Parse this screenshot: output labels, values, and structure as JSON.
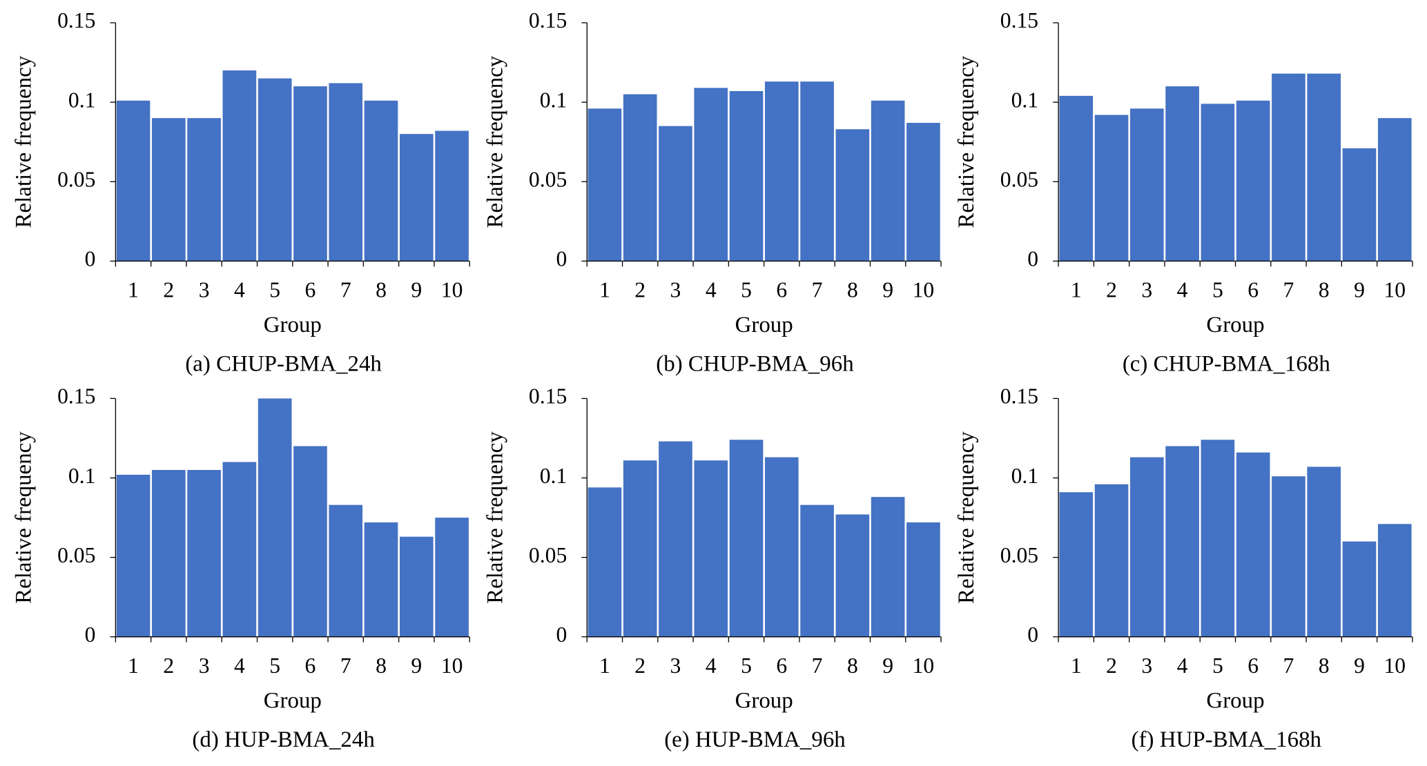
{
  "chart_data": [
    {
      "type": "bar",
      "title": "(a) CHUP-BMA_24h",
      "x_label": "Group",
      "y_label": "Relative frequency",
      "categories": [
        "1",
        "2",
        "3",
        "4",
        "5",
        "6",
        "7",
        "8",
        "9",
        "10"
      ],
      "values": [
        0.101,
        0.09,
        0.09,
        0.12,
        0.115,
        0.11,
        0.112,
        0.101,
        0.08,
        0.082
      ],
      "color": "#4472c4",
      "ylim": [
        0,
        0.15
      ],
      "yticks": [
        0,
        0.05,
        0.1,
        0.15
      ]
    },
    {
      "type": "bar",
      "title": "(b) CHUP-BMA_96h",
      "x_label": "Group",
      "y_label": "Relative frequency",
      "categories": [
        "1",
        "2",
        "3",
        "4",
        "5",
        "6",
        "7",
        "8",
        "9",
        "10"
      ],
      "values": [
        0.096,
        0.105,
        0.085,
        0.109,
        0.107,
        0.113,
        0.113,
        0.083,
        0.101,
        0.087
      ],
      "color": "#4472c4",
      "ylim": [
        0,
        0.15
      ],
      "yticks": [
        0,
        0.05,
        0.1,
        0.15
      ]
    },
    {
      "type": "bar",
      "title": "(c) CHUP-BMA_168h",
      "x_label": "Group",
      "y_label": "Relative frequency",
      "categories": [
        "1",
        "2",
        "3",
        "4",
        "5",
        "6",
        "7",
        "8",
        "9",
        "10"
      ],
      "values": [
        0.104,
        0.092,
        0.096,
        0.11,
        0.099,
        0.101,
        0.118,
        0.118,
        0.071,
        0.09
      ],
      "color": "#4472c4",
      "ylim": [
        0,
        0.15
      ],
      "yticks": [
        0,
        0.05,
        0.1,
        0.15
      ]
    },
    {
      "type": "bar",
      "title": "(d) HUP-BMA_24h",
      "x_label": "Group",
      "y_label": "Relative frequency",
      "categories": [
        "1",
        "2",
        "3",
        "4",
        "5",
        "6",
        "7",
        "8",
        "9",
        "10"
      ],
      "values": [
        0.102,
        0.105,
        0.105,
        0.11,
        0.15,
        0.12,
        0.083,
        0.072,
        0.063,
        0.075
      ],
      "color": "#4472c4",
      "ylim": [
        0,
        0.15
      ],
      "yticks": [
        0,
        0.05,
        0.1,
        0.15
      ]
    },
    {
      "type": "bar",
      "title": "(e) HUP-BMA_96h",
      "x_label": "Group",
      "y_label": "Relative frequency",
      "categories": [
        "1",
        "2",
        "3",
        "4",
        "5",
        "6",
        "7",
        "8",
        "9",
        "10"
      ],
      "values": [
        0.094,
        0.111,
        0.123,
        0.111,
        0.124,
        0.113,
        0.083,
        0.077,
        0.088,
        0.072
      ],
      "color": "#4472c4",
      "ylim": [
        0,
        0.15
      ],
      "yticks": [
        0,
        0.05,
        0.1,
        0.15
      ]
    },
    {
      "type": "bar",
      "title": "(f) HUP-BMA_168h",
      "x_label": "Group",
      "y_label": "Relative frequency",
      "categories": [
        "1",
        "2",
        "3",
        "4",
        "5",
        "6",
        "7",
        "8",
        "9",
        "10"
      ],
      "values": [
        0.091,
        0.096,
        0.113,
        0.12,
        0.124,
        0.116,
        0.101,
        0.107,
        0.06,
        0.071
      ],
      "color": "#4472c4",
      "ylim": [
        0,
        0.15
      ],
      "yticks": [
        0,
        0.05,
        0.1,
        0.15
      ]
    }
  ]
}
